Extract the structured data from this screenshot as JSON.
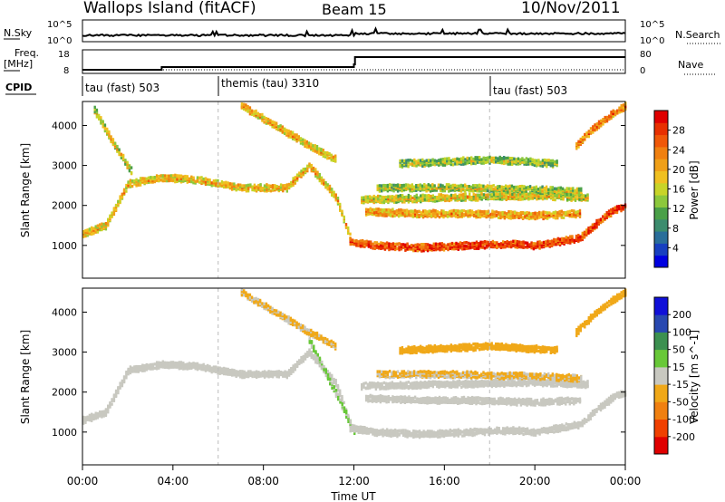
{
  "header": {
    "station": "Wallops Island (fitACF)",
    "beam": "Beam 15",
    "date": "10/Nov/2011"
  },
  "noise_panel": {
    "left_label": "N.Sky",
    "left_ticks": [
      "10^5",
      "10^0"
    ],
    "right_label": "N.Search",
    "right_ticks": [
      "10^5",
      "10^0"
    ]
  },
  "freq_panel": {
    "left_label_line1": "Freq.",
    "left_label_line2": "[MHz]",
    "left_ticks": [
      "18",
      "8"
    ],
    "right_label": "Nave",
    "right_ticks": [
      "80",
      "0"
    ]
  },
  "cpid_panel": {
    "label": "CPID",
    "segments": [
      {
        "start": 0,
        "label": "tau (fast) 503"
      },
      {
        "start": 6,
        "label": "themis (tau) 3310"
      },
      {
        "start": 18,
        "label": "tau (fast) 503"
      }
    ]
  },
  "x_axis": {
    "label": "Time UT",
    "ticks": [
      "00:00",
      "04:00",
      "08:00",
      "12:00",
      "16:00",
      "20:00",
      "00:00"
    ]
  },
  "chart_data": [
    {
      "type": "heatmap",
      "title": "",
      "xlabel": "Time UT",
      "ylabel": "Slant Range [km]",
      "xlim": [
        0,
        24
      ],
      "ylim": [
        180,
        4600
      ],
      "yticks": [
        "4000",
        "3000",
        "2000",
        "1000"
      ],
      "colorbar": {
        "label": "Power [dB]",
        "range": [
          0,
          32
        ],
        "ticks": [
          "28",
          "24",
          "20",
          "16",
          "12",
          "8",
          "4"
        ],
        "colors": [
          "#0000e0",
          "#1840c0",
          "#2a6e9a",
          "#3c8c6e",
          "#4aa048",
          "#8cc83c",
          "#c8d428",
          "#f0c020",
          "#f0a018",
          "#f08010",
          "#f05808",
          "#e83000",
          "#e00000"
        ]
      },
      "echo_bands": [
        {
          "name": "",
          "x": [
            0.0,
            1.0,
            2.0,
            3.5,
            5.0,
            7.0,
            9.0,
            10.0,
            11.2,
            11.8
          ],
          "y": [
            1300,
            1500,
            2550,
            2700,
            2650,
            2450,
            2450,
            3000,
            2200,
            1200
          ],
          "power": 18
        },
        {
          "name": "",
          "x": [
            11.8,
            13.0,
            15.0,
            17.0,
            19.0,
            20.0,
            21.0,
            22.0,
            22.8,
            23.5,
            24.0
          ],
          "y": [
            1100,
            1000,
            950,
            1000,
            1050,
            1000,
            1100,
            1200,
            1600,
            1900,
            2000
          ],
          "power": 26
        },
        {
          "name": "",
          "x": [
            12.5,
            15.0,
            17.0,
            20.0,
            22.0
          ],
          "y": [
            1850,
            1800,
            1800,
            1750,
            1800
          ],
          "power": 20
        },
        {
          "name": "",
          "x": [
            12.3,
            16.0,
            20.0,
            22.3
          ],
          "y": [
            2150,
            2200,
            2250,
            2200
          ],
          "power": 16
        },
        {
          "name": "",
          "x": [
            13.0,
            16.0,
            20.0,
            22.0
          ],
          "y": [
            2450,
            2450,
            2400,
            2350
          ],
          "power": 14
        },
        {
          "name": "",
          "x": [
            14.0,
            18.0,
            21.0
          ],
          "y": [
            3050,
            3150,
            3050
          ],
          "power": 13
        },
        {
          "name": "",
          "x": [
            0.5,
            1.3,
            2.2
          ],
          "y": [
            4400,
            3600,
            2800
          ],
          "power": 16
        },
        {
          "name": "",
          "x": [
            7.0,
            8.5,
            10.0,
            11.2
          ],
          "y": [
            4500,
            4000,
            3500,
            3150
          ],
          "power": 18
        },
        {
          "name": "",
          "x": [
            21.8,
            22.5,
            23.4,
            24.0
          ],
          "y": [
            3500,
            3900,
            4300,
            4500
          ],
          "power": 22
        }
      ]
    },
    {
      "type": "heatmap",
      "title": "",
      "xlabel": "Time UT",
      "ylabel": "Slant Range [km]",
      "xlim": [
        0,
        24
      ],
      "ylim": [
        180,
        4600
      ],
      "yticks": [
        "4000",
        "3000",
        "2000",
        "1000"
      ],
      "colorbar": {
        "label": "Velocity [m s^-1]",
        "range": [
          -250,
          250
        ],
        "ticks": [
          "200",
          "100",
          "50",
          "15",
          "-15",
          "-50",
          "-100",
          "-200"
        ],
        "colors": [
          "#e00000",
          "#f04000",
          "#f08010",
          "#f0a818",
          "#c8c8c0",
          "#68c838",
          "#3c9050",
          "#2848b0",
          "#1010d8"
        ]
      },
      "echo_bands": [
        {
          "name": "",
          "x": [
            0.0,
            1.0,
            2.0,
            3.5,
            5.0,
            7.0,
            9.0,
            10.0,
            11.2,
            11.8
          ],
          "y": [
            1300,
            1500,
            2550,
            2700,
            2650,
            2450,
            2450,
            3000,
            2200,
            1200
          ],
          "velocity": 0
        },
        {
          "name": "",
          "x": [
            10.0,
            10.8,
            11.5,
            12.0
          ],
          "y": [
            3300,
            2400,
            1600,
            1000
          ],
          "velocity": 30
        },
        {
          "name": "",
          "x": [
            11.8,
            13.0,
            15.0,
            17.0,
            19.0,
            20.0,
            21.0,
            22.0,
            22.8,
            23.5,
            24.0
          ],
          "y": [
            1100,
            1000,
            950,
            1000,
            1050,
            1000,
            1100,
            1200,
            1600,
            1900,
            2000
          ],
          "velocity": 0
        },
        {
          "name": "",
          "x": [
            12.5,
            15.0,
            17.0,
            20.0,
            22.0
          ],
          "y": [
            1850,
            1800,
            1800,
            1750,
            1800
          ],
          "velocity": 0
        },
        {
          "name": "",
          "x": [
            12.3,
            16.0,
            20.0,
            22.3
          ],
          "y": [
            2150,
            2200,
            2250,
            2200
          ],
          "velocity": 0
        },
        {
          "name": "",
          "x": [
            13.0,
            16.0,
            20.0,
            22.0
          ],
          "y": [
            2450,
            2450,
            2400,
            2350
          ],
          "velocity": -30
        },
        {
          "name": "",
          "x": [
            14.0,
            18.0,
            21.0
          ],
          "y": [
            3050,
            3150,
            3050
          ],
          "velocity": -40
        },
        {
          "name": "",
          "x": [
            7.0,
            8.5,
            10.0,
            11.2
          ],
          "y": [
            4500,
            4000,
            3500,
            3150
          ],
          "velocity": -30
        },
        {
          "name": "",
          "x": [
            21.8,
            22.5,
            23.4,
            24.0
          ],
          "y": [
            3500,
            3900,
            4300,
            4500
          ],
          "velocity": -70
        }
      ]
    }
  ]
}
